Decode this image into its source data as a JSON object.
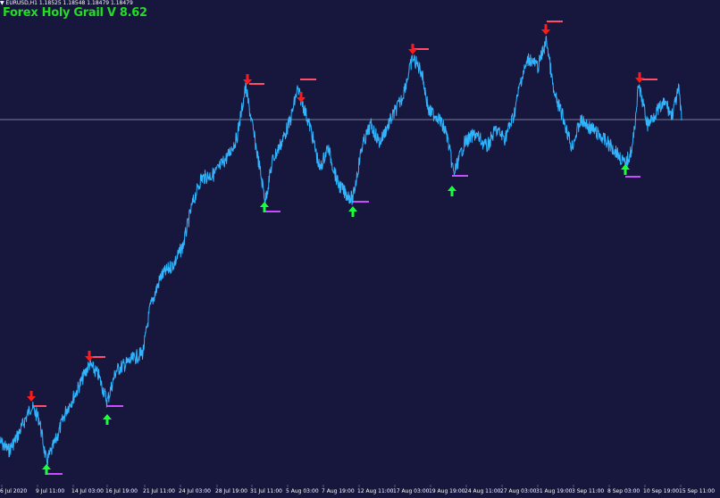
{
  "header": {
    "symbol_line": "▼ EURUSD,H1  1.18525 1.18548 1.18479 1.18479",
    "indicator_title": "Forex Holy Grail V 8.62"
  },
  "colors": {
    "background": "#17163d",
    "price_line": "#2fb6ff",
    "sell_arrow": "#ff1a1a",
    "buy_arrow": "#1aff3a",
    "resistance_mark": "#ff4d6a",
    "support_mark": "#c84dff",
    "horizontal_level": "#9aa3b5",
    "axis_text": "#ffffff"
  },
  "x_axis_labels": [
    "6 Jul 2020",
    "9 Jul 11:00",
    "14 Jul 03:00",
    "16 Jul 19:00",
    "21 Jul 11:00",
    "24 Jul 03:00",
    "28 Jul 19:00",
    "31 Jul 11:00",
    "5 Aug 03:00",
    "7 Aug 19:00",
    "12 Aug 11:00",
    "17 Aug 03:00",
    "19 Aug 19:00",
    "24 Aug 11:00",
    "27 Aug 03:00",
    "31 Aug 19:00",
    "3 Sep 11:00",
    "8 Sep 03:00",
    "10 Sep 19:00",
    "15 Sep 11:00"
  ],
  "sell_signals": [
    {
      "label": "9 Jul 11:00"
    },
    {
      "label": "14 Jul 03:00"
    },
    {
      "label": "28 Jul 19:00"
    },
    {
      "label": "5 Aug 03:00"
    },
    {
      "label": "17 Aug 03:00"
    },
    {
      "label": "31 Aug 19:00"
    },
    {
      "label": "10 Sep 19:00"
    }
  ],
  "buy_signals": [
    {
      "label": "9 Jul 11:00"
    },
    {
      "label": "16 Jul 19:00"
    },
    {
      "label": "31 Jul 11:00"
    },
    {
      "label": "12 Aug 11:00"
    },
    {
      "label": "19 Aug 19:00"
    },
    {
      "label": "8 Sep 03:00"
    }
  ]
}
